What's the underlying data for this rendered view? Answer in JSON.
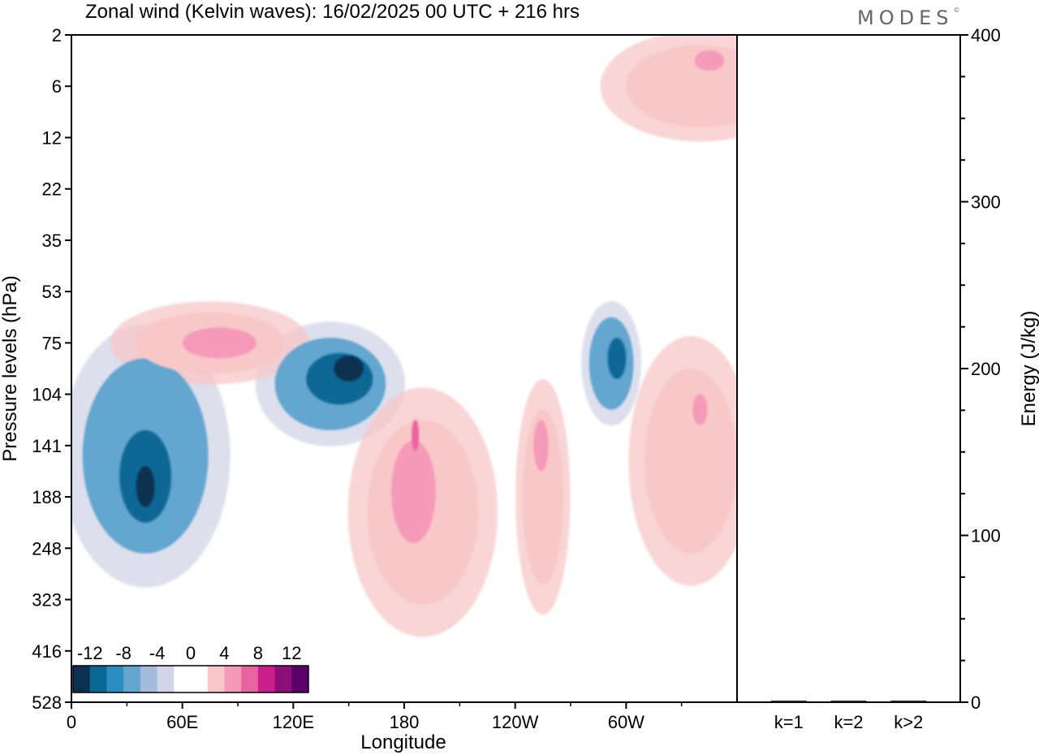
{
  "title": "Zonal wind (Kelvin waves):  16/02/2025  00 UTC  + 216 hrs",
  "logo": {
    "text": "MODES",
    "mark": "©"
  },
  "chart_data": [
    {
      "type": "heatmap",
      "xlabel": "Longitude",
      "ylabel": "Pressure levels (hPa)",
      "x_ticks": [
        "0",
        "60E",
        "120E",
        "180",
        "120W",
        "60W"
      ],
      "x_tick_values": [
        0,
        60,
        120,
        180,
        240,
        300
      ],
      "xlim": [
        0,
        360
      ],
      "y_ticks": [
        "2",
        "6",
        "12",
        "22",
        "35",
        "53",
        "75",
        "104",
        "141",
        "188",
        "248",
        "323",
        "416",
        "528"
      ],
      "colorbar": {
        "tick_labels": [
          "-12",
          "-8",
          "-4",
          "0",
          "4",
          "8",
          "12"
        ],
        "colors": [
          "#08324f",
          "#0a6896",
          "#2d8cc0",
          "#64a6d0",
          "#a3bbdc",
          "#d2d5e8",
          "#ffffff",
          "#ffffff",
          "#f8c8c8",
          "#f59ab9",
          "#e9649f",
          "#ca1e8b",
          "#8f0f7a",
          "#5a0068"
        ]
      },
      "regions": [
        {
          "value": -4,
          "lon": 40,
          "lev": 8.2,
          "dlon": 34,
          "dlev": 1.9
        },
        {
          "value": -8,
          "lon": 40,
          "lev": 8.6,
          "dlon": 14,
          "dlev": 0.9
        },
        {
          "value": -12,
          "lon": 40,
          "lev": 8.8,
          "dlon": 5,
          "dlev": 0.4
        },
        {
          "value": -4,
          "lon": 140,
          "lev": 6.8,
          "dlon": 30,
          "dlev": 0.9
        },
        {
          "value": -8,
          "lon": 145,
          "lev": 6.7,
          "dlon": 18,
          "dlev": 0.5
        },
        {
          "value": -12,
          "lon": 150,
          "lev": 6.5,
          "dlon": 8,
          "dlev": 0.25
        },
        {
          "value": -4,
          "lon": 292,
          "lev": 6.4,
          "dlon": 12,
          "dlev": 0.9
        },
        {
          "value": -8,
          "lon": 295,
          "lev": 6.3,
          "dlon": 5,
          "dlev": 0.4
        },
        {
          "value": 4,
          "lon": 190,
          "lev": 9.3,
          "dlon": 30,
          "dlev": 1.8
        },
        {
          "value": 8,
          "lon": 185,
          "lev": 8.9,
          "dlon": 12,
          "dlev": 1.0
        },
        {
          "value": 12,
          "lon": 186,
          "lev": 7.8,
          "dlon": 2,
          "dlev": 0.3
        },
        {
          "value": 4,
          "lon": 255,
          "lev": 9.0,
          "dlon": 11,
          "dlev": 1.7
        },
        {
          "value": 8,
          "lon": 254,
          "lev": 8.0,
          "dlon": 4,
          "dlev": 0.5
        },
        {
          "value": 4,
          "lon": 335,
          "lev": 8.3,
          "dlon": 25,
          "dlev": 1.8
        },
        {
          "value": 8,
          "lon": 340,
          "lev": 7.3,
          "dlon": 4,
          "dlev": 0.3
        },
        {
          "value": 4,
          "lon": 75,
          "lev": 6.0,
          "dlon": 40,
          "dlev": 0.6
        },
        {
          "value": 8,
          "lon": 80,
          "lev": 6.0,
          "dlon": 20,
          "dlev": 0.3
        },
        {
          "value": 4,
          "lon": 340,
          "lev": 1.0,
          "dlon": 40,
          "dlev": 0.8
        },
        {
          "value": 8,
          "lon": 345,
          "lev": 0.5,
          "dlon": 8,
          "dlev": 0.2
        }
      ]
    },
    {
      "type": "bar",
      "categories": [
        "k=1",
        "k=2",
        "k>2"
      ],
      "values": [
        0.5,
        0.3,
        0.6
      ],
      "ylabel": "Energy (J/kg)",
      "ylim": [
        0,
        400
      ],
      "y_ticks": [
        "0",
        "100",
        "200",
        "300",
        "400"
      ]
    }
  ]
}
